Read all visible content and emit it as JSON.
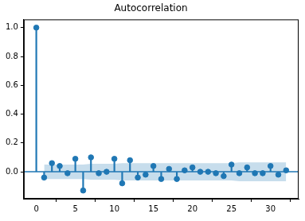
{
  "chart_data": {
    "type": "stem",
    "title": "Autocorrelation",
    "x": [
      0,
      1,
      2,
      3,
      4,
      5,
      6,
      7,
      8,
      9,
      10,
      11,
      12,
      13,
      14,
      15,
      16,
      17,
      18,
      19,
      20,
      21,
      22,
      23,
      24,
      25,
      26,
      27,
      28,
      29,
      30,
      31,
      32
    ],
    "values": [
      1.0,
      -0.04,
      0.06,
      0.04,
      -0.01,
      0.09,
      -0.13,
      0.1,
      -0.01,
      0.0,
      0.09,
      -0.08,
      0.08,
      -0.04,
      -0.02,
      0.04,
      -0.05,
      0.02,
      -0.05,
      0.01,
      0.03,
      0.0,
      0.0,
      -0.01,
      -0.03,
      0.05,
      -0.01,
      0.03,
      -0.01,
      -0.01,
      0.04,
      -0.02,
      0.01
    ],
    "confidence_band": [
      null,
      0.05,
      0.05,
      0.05,
      0.05,
      0.05,
      0.05,
      0.055,
      0.055,
      0.055,
      0.055,
      0.06,
      0.06,
      0.06,
      0.06,
      0.06,
      0.06,
      0.06,
      0.06,
      0.06,
      0.06,
      0.06,
      0.06,
      0.06,
      0.06,
      0.06,
      0.065,
      0.065,
      0.065,
      0.065,
      0.065,
      0.065,
      0.065
    ],
    "color": "#1f77b4",
    "marker": "circle",
    "xlim": [
      -1.6,
      33.6
    ],
    "xticks": [
      0,
      5,
      10,
      15,
      20,
      25,
      30
    ],
    "ylim": [
      -0.187,
      1.057
    ],
    "yticks": [
      {
        "value": 0,
        "label": "0.0"
      },
      {
        "value": 0.2,
        "label": "0.2"
      },
      {
        "value": 0.4,
        "label": "0.4"
      },
      {
        "value": 0.6,
        "label": "0.6"
      },
      {
        "value": 0.8,
        "label": "0.8"
      },
      {
        "value": 1.0,
        "label": "1.0"
      }
    ],
    "grid": false
  }
}
